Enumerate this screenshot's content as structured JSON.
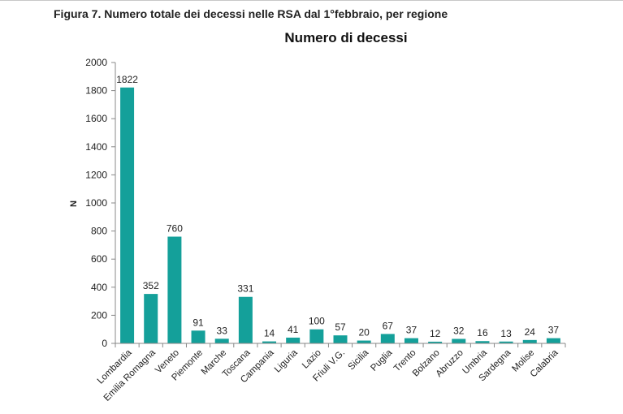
{
  "caption": "Figura 7. Numero totale dei decessi nelle RSA dal 1°febbraio, per regione",
  "chart_data": {
    "type": "bar",
    "title": "Numero di decessi",
    "xlabel": "",
    "ylabel": "N",
    "ylim": [
      0,
      2000
    ],
    "yticks": [
      0,
      200,
      400,
      600,
      800,
      1000,
      1200,
      1400,
      1600,
      1800,
      2000
    ],
    "grid": false,
    "bar_color": "#14a09a",
    "categories": [
      "Lombardia",
      "Emilia Romagna",
      "Veneto",
      "Piemonte",
      "Marche",
      "Toscana",
      "Campania",
      "Liguria",
      "Lazio",
      "Friuli V.G.",
      "Sicilia",
      "Puglia",
      "Trento",
      "Bolzano",
      "Abruzzo",
      "Umbria",
      "Sardegna",
      "Molise",
      "Calabria"
    ],
    "values": [
      1822,
      352,
      760,
      91,
      33,
      331,
      14,
      41,
      100,
      57,
      20,
      67,
      37,
      12,
      32,
      16,
      13,
      24,
      37
    ]
  }
}
